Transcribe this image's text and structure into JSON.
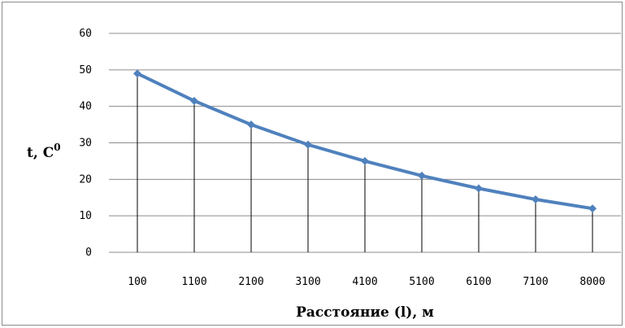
{
  "chart_data": {
    "type": "line",
    "categories": [
      "100",
      "1100",
      "2100",
      "3100",
      "4100",
      "5100",
      "6100",
      "7100",
      "8000"
    ],
    "series": [
      {
        "values": [
          49,
          41.5,
          35,
          29.5,
          25,
          21,
          17.5,
          14.5,
          12
        ]
      }
    ],
    "ylim": [
      0,
      60
    ],
    "yticks": [
      "0",
      "10",
      "20",
      "30",
      "40",
      "50",
      "60"
    ],
    "ylabel": {
      "main": "t, C",
      "sup": "0"
    },
    "xlabel": "Расстояние (l), м",
    "grid": true,
    "legend": "none",
    "colors": {
      "line": "#4f81bd",
      "marker": "#4f81bd",
      "drop_line": "#000000",
      "grid": "#8c8c8c"
    }
  }
}
